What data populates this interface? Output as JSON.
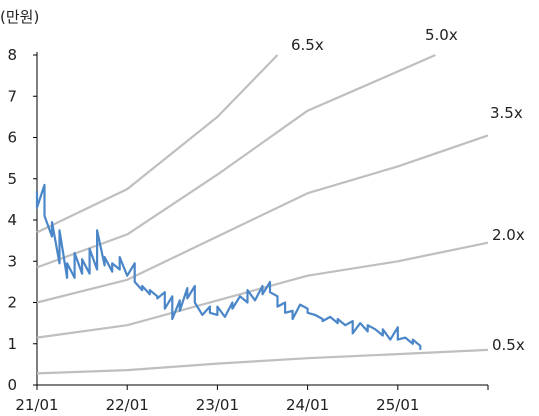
{
  "chart_data": {
    "type": "line",
    "unit_label": "(만원)",
    "ylim": [
      0,
      8
    ],
    "y_ticks": [
      "0",
      "1",
      "2",
      "3",
      "4",
      "5",
      "6",
      "7",
      "8"
    ],
    "x_tick_labels": [
      "21/01",
      "22/01",
      "23/01",
      "24/01",
      "25/01"
    ],
    "grid": false,
    "band_lines": [
      {
        "name": "6.5x",
        "color": "#bfbfbf",
        "x": [
          "2021-01",
          "2022-01",
          "2023-01",
          "2023-09"
        ],
        "y": [
          3.7,
          4.75,
          6.5,
          8.0
        ]
      },
      {
        "name": "5.0x",
        "color": "#bfbfbf",
        "x": [
          "2021-01",
          "2022-01",
          "2023-01",
          "2024-01",
          "2025-01",
          "2025-06"
        ],
        "y": [
          2.85,
          3.65,
          5.1,
          6.65,
          7.6,
          8.0
        ]
      },
      {
        "name": "3.5x",
        "color": "#bfbfbf",
        "x": [
          "2021-01",
          "2022-01",
          "2023-01",
          "2024-01",
          "2025-01",
          "2026-01"
        ],
        "y": [
          2.0,
          2.55,
          3.6,
          4.65,
          5.3,
          6.05
        ]
      },
      {
        "name": "2.0x",
        "color": "#bfbfbf",
        "x": [
          "2021-01",
          "2022-01",
          "2023-01",
          "2024-01",
          "2025-01",
          "2026-01"
        ],
        "y": [
          1.15,
          1.45,
          2.05,
          2.65,
          3.0,
          3.45
        ]
      },
      {
        "name": "0.5x",
        "color": "#bfbfbf",
        "x": [
          "2021-01",
          "2022-01",
          "2023-01",
          "2024-01",
          "2025-01",
          "2026-01"
        ],
        "y": [
          0.28,
          0.36,
          0.52,
          0.65,
          0.75,
          0.85
        ]
      }
    ],
    "price_series": {
      "color": "#4a86c8",
      "x": [
        "2021-01",
        "2021-01",
        "2021-02",
        "2021-02",
        "2021-03",
        "2021-03",
        "2021-04",
        "2021-04",
        "2021-05",
        "2021-05",
        "2021-06",
        "2021-06",
        "2021-07",
        "2021-07",
        "2021-08",
        "2021-08",
        "2021-09",
        "2021-09",
        "2021-10",
        "2021-10",
        "2021-11",
        "2021-11",
        "2021-12",
        "2021-12",
        "2022-01",
        "2022-02",
        "2022-02",
        "2022-03",
        "2022-03",
        "2022-04",
        "2022-04",
        "2022-05",
        "2022-05",
        "2022-06",
        "2022-06",
        "2022-07",
        "2022-07",
        "2022-08",
        "2022-08",
        "2022-09",
        "2022-09",
        "2022-10",
        "2022-10",
        "2022-11",
        "2022-12",
        "2022-12",
        "2023-01",
        "2023-01",
        "2023-02",
        "2023-03",
        "2023-03",
        "2023-04",
        "2023-05",
        "2023-05",
        "2023-06",
        "2023-07",
        "2023-07",
        "2023-08",
        "2023-08",
        "2023-09",
        "2023-09",
        "2023-10",
        "2023-10",
        "2023-11",
        "2023-11",
        "2023-12",
        "2024-01",
        "2024-01",
        "2024-02",
        "2024-03",
        "2024-03",
        "2024-04",
        "2024-05",
        "2024-05",
        "2024-06",
        "2024-07",
        "2024-07",
        "2024-08",
        "2024-09",
        "2024-09",
        "2024-10",
        "2024-11",
        "2024-11",
        "2024-12",
        "2025-01",
        "2025-01",
        "2025-02",
        "2025-03",
        "2025-03",
        "2025-04",
        "2025-04"
      ],
      "y": [
        4.7,
        4.3,
        4.85,
        4.1,
        3.6,
        3.95,
        2.95,
        3.75,
        2.6,
        2.95,
        2.6,
        3.2,
        2.7,
        3.05,
        2.7,
        3.3,
        2.8,
        3.75,
        2.9,
        3.1,
        2.75,
        2.95,
        2.8,
        3.1,
        2.65,
        2.95,
        2.5,
        2.3,
        2.4,
        2.2,
        2.3,
        2.15,
        2.1,
        2.25,
        1.85,
        2.15,
        1.6,
        2.05,
        1.8,
        2.35,
        2.1,
        2.4,
        2.0,
        1.7,
        1.9,
        1.75,
        1.7,
        1.9,
        1.65,
        2.0,
        1.85,
        2.15,
        2.0,
        2.3,
        2.05,
        2.4,
        2.2,
        2.5,
        2.25,
        2.15,
        1.9,
        2.0,
        1.75,
        1.8,
        1.6,
        1.95,
        1.85,
        1.75,
        1.7,
        1.6,
        1.55,
        1.65,
        1.5,
        1.6,
        1.45,
        1.55,
        1.25,
        1.5,
        1.3,
        1.45,
        1.35,
        1.2,
        1.35,
        1.1,
        1.4,
        1.1,
        1.15,
        1.0,
        1.1,
        0.95,
        0.85
      ]
    }
  }
}
